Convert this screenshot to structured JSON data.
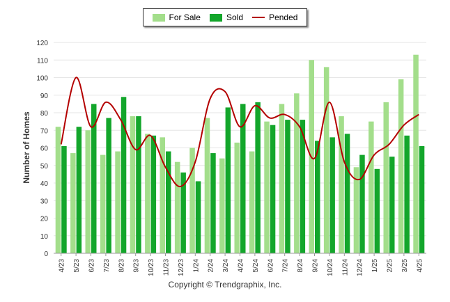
{
  "colors": {
    "for_sale": "#a3de8b",
    "sold": "#13a62b",
    "pended": "#b40000",
    "grid": "#e6e6e6",
    "axis": "#444444"
  },
  "legend": [
    {
      "name": "For Sale",
      "kind": "bar",
      "color": "#a3de8b"
    },
    {
      "name": "Sold",
      "kind": "bar",
      "color": "#13a62b"
    },
    {
      "name": "Pended",
      "kind": "line",
      "color": "#b40000"
    }
  ],
  "copyright": "Copyright © Trendgraphix, Inc.",
  "chart_data": {
    "type": "bar",
    "ylabel": "Number of Homes",
    "xlabel": "",
    "ylim": [
      0,
      120
    ],
    "ytick_step": 10,
    "grid": true,
    "legend_position": "top-center",
    "categories": [
      "4/23",
      "5/23",
      "6/23",
      "7/23",
      "8/23",
      "9/23",
      "10/23",
      "11/23",
      "12/23",
      "1/24",
      "2/24",
      "3/24",
      "4/24",
      "5/24",
      "6/24",
      "7/24",
      "8/24",
      "9/24",
      "10/24",
      "11/24",
      "12/24",
      "1/25",
      "2/25",
      "3/25",
      "4/25"
    ],
    "series": [
      {
        "name": "For Sale",
        "type": "bar",
        "values": [
          72,
          57,
          70,
          56,
          58,
          78,
          68,
          66,
          52,
          60,
          77,
          54,
          63,
          58,
          75,
          85,
          91,
          110,
          106,
          78,
          49,
          75,
          86,
          99,
          113
        ]
      },
      {
        "name": "Sold",
        "type": "bar",
        "values": [
          61,
          72,
          85,
          77,
          89,
          78,
          67,
          58,
          46,
          41,
          57,
          83,
          85,
          86,
          73,
          76,
          76,
          64,
          66,
          68,
          56,
          48,
          55,
          67,
          61
        ]
      },
      {
        "name": "Pended",
        "type": "line",
        "values": [
          62,
          100,
          72,
          86,
          76,
          59,
          67,
          49,
          38,
          52,
          88,
          92,
          72,
          84,
          77,
          79,
          72,
          54,
          86,
          52,
          42,
          56,
          62,
          73,
          79
        ]
      }
    ]
  }
}
